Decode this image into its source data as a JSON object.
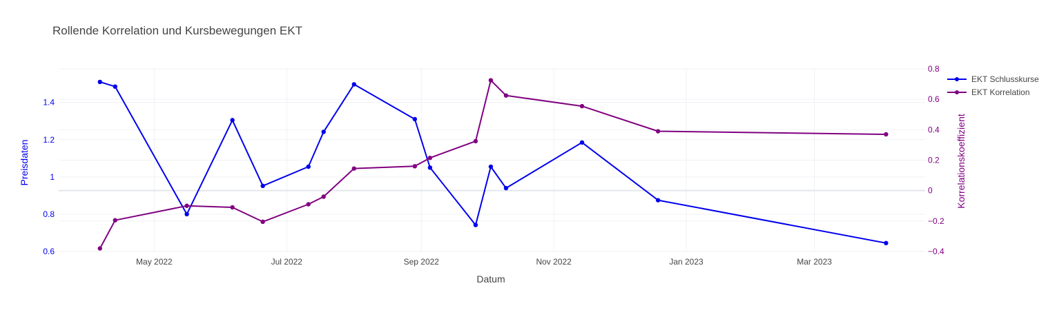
{
  "chart_data": {
    "type": "line",
    "title": "Rollende Korrelation und Kursbewegungen EKT",
    "xlabel": "Datum",
    "x_ticks": [
      "2022-05-01",
      "2022-07-01",
      "2022-09-01",
      "2022-11-01",
      "2023-01-01",
      "2023-03-01"
    ],
    "x_tick_labels": [
      "May 2022",
      "Jul 2022",
      "Sep 2022",
      "Nov 2022",
      "Jan 2023",
      "Mar 2023"
    ],
    "xlim": [
      "2022-03-18",
      "2023-04-21"
    ],
    "legend_position": "top-right",
    "grid": true,
    "series": [
      {
        "name": "EKT Schlusskurse",
        "axis": "left",
        "color": "#0000ee",
        "x": [
          "2022-04-06",
          "2022-04-13",
          "2022-05-16",
          "2022-06-06",
          "2022-06-20",
          "2022-07-11",
          "2022-07-18",
          "2022-08-01",
          "2022-08-29",
          "2022-09-05",
          "2022-09-26",
          "2022-10-03",
          "2022-10-10",
          "2022-11-14",
          "2022-12-19",
          "2023-04-03"
        ],
        "values": [
          1.51,
          1.485,
          0.8,
          1.305,
          0.952,
          1.055,
          1.242,
          1.497,
          1.31,
          1.05,
          0.742,
          1.055,
          0.94,
          1.185,
          0.875,
          0.645
        ]
      },
      {
        "name": "EKT Korrelation",
        "axis": "right",
        "color": "#800080",
        "x": [
          "2022-04-06",
          "2022-04-13",
          "2022-05-16",
          "2022-06-06",
          "2022-06-20",
          "2022-07-11",
          "2022-07-18",
          "2022-08-01",
          "2022-08-29",
          "2022-09-05",
          "2022-09-26",
          "2022-10-03",
          "2022-10-10",
          "2022-11-14",
          "2022-12-19",
          "2023-04-03"
        ],
        "values": [
          -0.38,
          -0.195,
          -0.1,
          -0.11,
          -0.205,
          -0.09,
          -0.04,
          0.145,
          0.16,
          0.215,
          0.325,
          0.725,
          0.625,
          0.555,
          0.39,
          0.37
        ]
      }
    ],
    "left_axis": {
      "label": "Preisdaten",
      "color": "#0000ee",
      "ylim": [
        0.6,
        1.58
      ],
      "ticks": [
        0.6,
        0.8,
        1,
        1.2,
        1.4
      ],
      "tick_labels": [
        "0.6",
        "0.8",
        "1",
        "1.2",
        "1.4"
      ]
    },
    "right_axis": {
      "label": "Korrelationskoeffizient",
      "color": "#800080",
      "ylim": [
        -0.4,
        0.8
      ],
      "ticks": [
        -0.4,
        -0.2,
        0,
        0.2,
        0.4,
        0.6,
        0.8
      ],
      "tick_labels": [
        "−0.4",
        "−0.2",
        "0",
        "0.2",
        "0.4",
        "0.6",
        "0.8"
      ]
    }
  }
}
